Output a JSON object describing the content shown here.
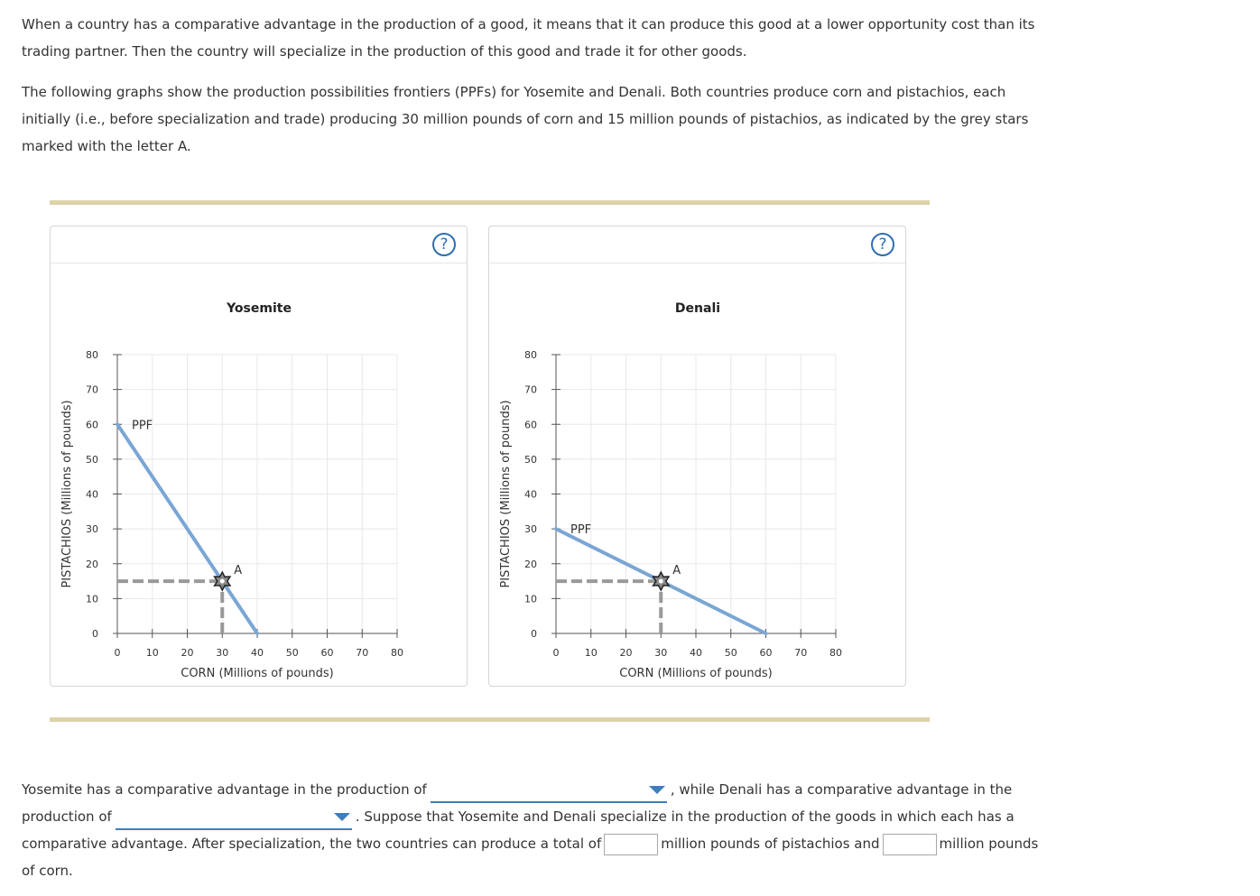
{
  "intro": {
    "p1_line1": "When a country has a comparative advantage in the production of a good, it means that it can produce this good at a lower opportunity cost than its",
    "p1_line2": "trading partner. Then the country will specialize in the production of this good and trade it for other goods.",
    "p2_line1": "The following graphs show the production possibilities frontiers (PPFs) for Yosemite and Denali. Both countries produce corn and pistachios, each",
    "p2_line2": "initially (i.e., before specialization and trade) producing 30 million pounds of corn and 15 million pounds of pistachios, as indicated by the grey stars",
    "p2_line3": "marked with the letter A."
  },
  "help_icon_text": "?",
  "chart_data": [
    {
      "type": "line",
      "title": "Yosemite",
      "xlabel": "CORN (Millions of pounds)",
      "ylabel": "PISTACHIOS (Millions of pounds)",
      "xlim": [
        0,
        80
      ],
      "ylim": [
        0,
        80
      ],
      "xticks": [
        0,
        10,
        20,
        30,
        40,
        50,
        60,
        70,
        80
      ],
      "yticks": [
        0,
        10,
        20,
        30,
        40,
        50,
        60,
        70,
        80
      ],
      "grid": true,
      "series": [
        {
          "name": "PPF",
          "x": [
            0,
            40
          ],
          "y": [
            60,
            0
          ]
        }
      ],
      "point": {
        "label": "A",
        "x": 30,
        "y": 15
      },
      "colors": {
        "ppf": "#7aa6d4",
        "guide": "#999999",
        "grid": "#e8e8e8"
      }
    },
    {
      "type": "line",
      "title": "Denali",
      "xlabel": "CORN (Millions of pounds)",
      "ylabel": "PISTACHIOS (Millions of pounds)",
      "xlim": [
        0,
        80
      ],
      "ylim": [
        0,
        80
      ],
      "xticks": [
        0,
        10,
        20,
        30,
        40,
        50,
        60,
        70,
        80
      ],
      "yticks": [
        0,
        10,
        20,
        30,
        40,
        50,
        60,
        70,
        80
      ],
      "grid": true,
      "series": [
        {
          "name": "PPF",
          "x": [
            0,
            60
          ],
          "y": [
            30,
            0
          ]
        }
      ],
      "point": {
        "label": "A",
        "x": 30,
        "y": 15
      },
      "colors": {
        "ppf": "#7aa6d4",
        "guide": "#999999",
        "grid": "#e8e8e8"
      }
    }
  ],
  "question": {
    "text1": "Yosemite has a comparative advantage in the production of",
    "text2": ", while Denali has a comparative advantage in the",
    "text3": "production of",
    "text4": ". Suppose that Yosemite and Denali specialize in the production of the goods in which each has a",
    "text5": "comparative advantage. After specialization, the two countries can produce a total of",
    "text6": "million pounds of pistachios and",
    "text7": "million pounds",
    "text8": "of corn.",
    "dropdown1_value": "",
    "dropdown2_value": "",
    "pistachios_total_value": "",
    "corn_total_value": ""
  }
}
